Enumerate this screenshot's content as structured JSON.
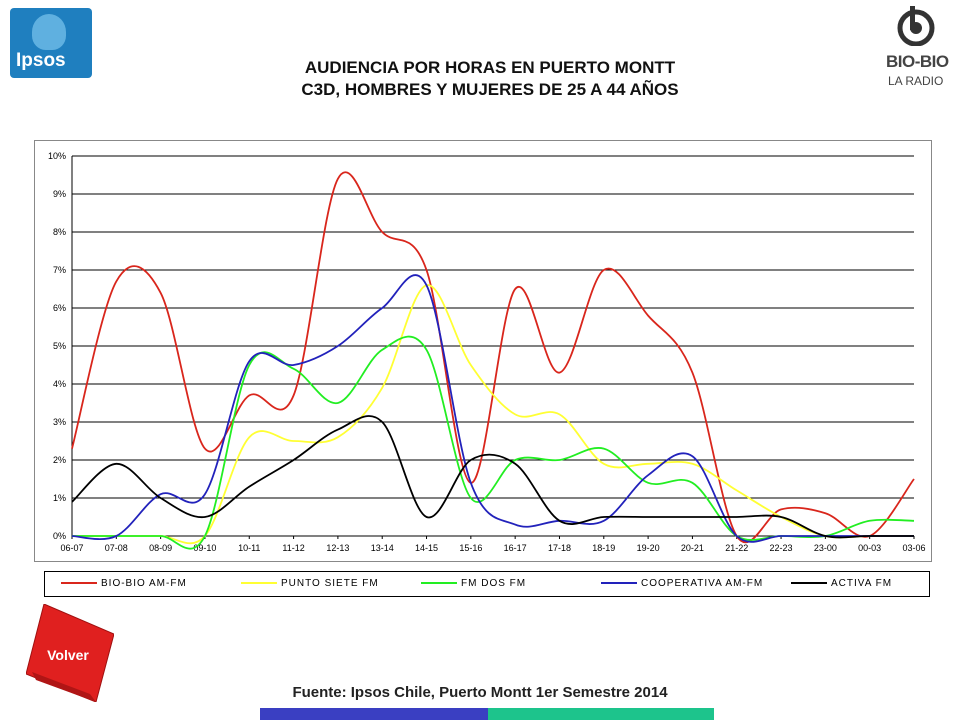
{
  "header": {
    "title_line1": "AUDIENCIA POR HORAS EN PUERTO MONTT",
    "title_line2": "C3D, HOMBRES Y MUJERES DE 25 A 44 AÑOS"
  },
  "logos": {
    "ipsos_text": "Ipsos",
    "ipsos_color": "#1f7fbf",
    "biobio_line1": "BIO-BIO",
    "biobio_line2": "LA RADIO"
  },
  "volver_label": "Volver",
  "volver_color": "#e0201f",
  "source": "Fuente: Ipsos Chile, Puerto Montt 1er Semestre 2014",
  "chart_data": {
    "type": "line",
    "title": "AUDIENCIA POR HORAS EN PUERTO MONTT C3D, HOMBRES Y MUJERES DE 25 A 44 AÑOS",
    "xlabel": "",
    "ylabel": "",
    "ylim": [
      0,
      10
    ],
    "y_ticks": [
      "0%",
      "1%",
      "2%",
      "3%",
      "4%",
      "5%",
      "6%",
      "7%",
      "8%",
      "9%",
      "10%"
    ],
    "grid": true,
    "legend_position": "bottom",
    "categories": [
      "06-07",
      "07-08",
      "08-09",
      "09-10",
      "10-11",
      "11-12",
      "12-13",
      "13-14",
      "14-15",
      "15-16",
      "16-17",
      "17-18",
      "18-19",
      "19-20",
      "20-21",
      "21-22",
      "22-23",
      "23-00",
      "00-03",
      "03-06"
    ],
    "series": [
      {
        "name": "BIO-BIO AM-FM",
        "color": "#d9261c",
        "values": [
          2.3,
          6.7,
          6.4,
          2.3,
          3.7,
          3.7,
          9.4,
          8.0,
          7.0,
          1.4,
          6.5,
          4.3,
          7.0,
          5.8,
          4.3,
          0.0,
          0.7,
          0.6,
          0.0,
          1.5
        ]
      },
      {
        "name": "PUNTO SIETE FM",
        "color": "#ffff33",
        "values": [
          0.0,
          0.0,
          0.0,
          0.0,
          2.6,
          2.5,
          2.6,
          3.9,
          6.6,
          4.5,
          3.2,
          3.2,
          1.9,
          1.9,
          1.9,
          1.2,
          0.5,
          0.0,
          0.0,
          0.0
        ]
      },
      {
        "name": "FM DOS FM",
        "color": "#22ee22",
        "values": [
          0.0,
          0.0,
          0.0,
          0.0,
          4.5,
          4.4,
          3.5,
          4.9,
          4.9,
          1.0,
          2.0,
          2.0,
          2.3,
          1.4,
          1.4,
          0.0,
          0.0,
          0.0,
          0.4,
          0.4
        ]
      },
      {
        "name": "COOPERATIVA AM-FM",
        "color": "#2222bb",
        "values": [
          0.0,
          0.0,
          1.1,
          1.1,
          4.6,
          4.5,
          5.0,
          6.0,
          6.6,
          1.4,
          0.3,
          0.4,
          0.4,
          1.6,
          2.1,
          0.0,
          0.0,
          0.0,
          0.0,
          0.0
        ]
      },
      {
        "name": "ACTIVA FM",
        "color": "#000000",
        "values": [
          0.9,
          1.9,
          1.0,
          0.5,
          1.3,
          2.0,
          2.8,
          3.0,
          0.5,
          2.0,
          1.9,
          0.4,
          0.5,
          0.5,
          0.5,
          0.5,
          0.5,
          0.0,
          0.0,
          0.0
        ]
      }
    ]
  }
}
